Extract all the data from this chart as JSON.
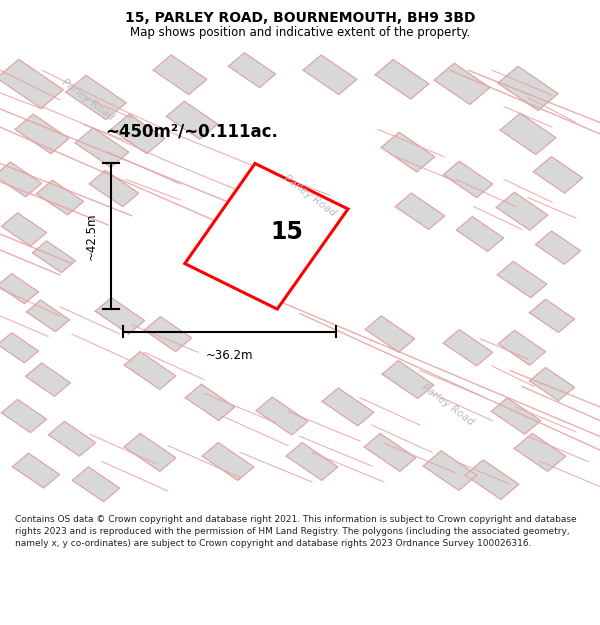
{
  "title_line1": "15, PARLEY ROAD, BOURNEMOUTH, BH9 3BD",
  "title_line2": "Map shows position and indicative extent of the property.",
  "footer_text": "Contains OS data © Crown copyright and database right 2021. This information is subject to Crown copyright and database rights 2023 and is reproduced with the permission of HM Land Registry. The polygons (including the associated geometry, namely x, y co-ordinates) are subject to Crown copyright and database rights 2023 Ordnance Survey 100026316.",
  "area_label": "~450m²/~0.111ac.",
  "number_label": "15",
  "dim_width": "~36.2m",
  "dim_height": "~42.5m",
  "map_bg": "#f7f7f7",
  "plot_color": "#ff0000",
  "plot_fill": "#ffffff",
  "building_fill": "#d8d8d8",
  "building_edge": "#bbbbbb",
  "road_label_color": "#bbbbbb",
  "pink": "#e8a0a0",
  "title_fontsize": 10,
  "subtitle_fontsize": 8.5,
  "footer_fontsize": 6.5
}
